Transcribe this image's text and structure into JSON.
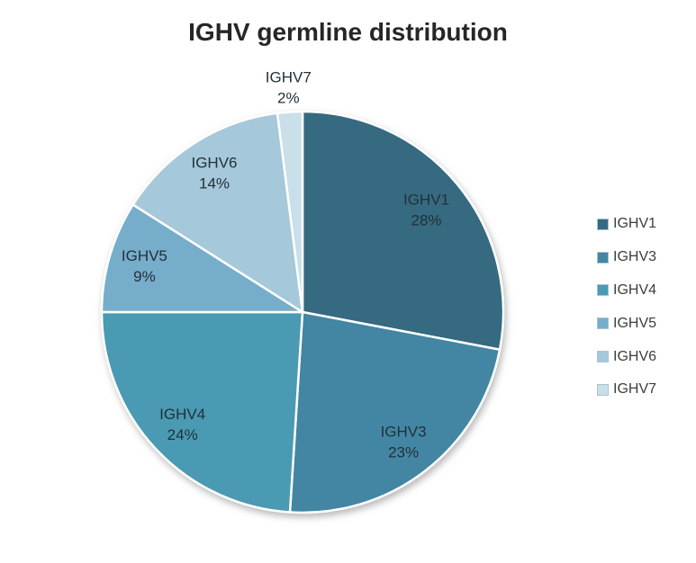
{
  "chart_data": {
    "type": "pie",
    "title": "IGHV germline distribution",
    "categories": [
      "IGHV1",
      "IGHV3",
      "IGHV4",
      "IGHV5",
      "IGHV6",
      "IGHV7"
    ],
    "values": [
      28,
      23,
      24,
      9,
      14,
      2
    ],
    "value_unit": "%",
    "data_labels": [
      {
        "name": "IGHV1",
        "percent": "28%"
      },
      {
        "name": "IGHV3",
        "percent": "23%"
      },
      {
        "name": "IGHV4",
        "percent": "24%"
      },
      {
        "name": "IGHV5",
        "percent": "9%"
      },
      {
        "name": "IGHV6",
        "percent": "14%"
      },
      {
        "name": "IGHV7",
        "percent": "2%"
      }
    ],
    "legend_entries": [
      "IGHV1",
      "IGHV3",
      "IGHV4",
      "IGHV5",
      "IGHV6",
      "IGHV7"
    ],
    "colors": [
      "#346b80",
      "#4286a3",
      "#4a9ab2",
      "#76adcb",
      "#a5c8da",
      "#c9dfe9"
    ],
    "title_color": "#262626",
    "label_color": "#233038",
    "legend_text_color": "#3d3d3d",
    "layout": {
      "legend_position": "right",
      "start_angle": "top-clockwise",
      "center": [
        336,
        347
      ],
      "radius": 223,
      "label_radius_fraction": [
        0.8,
        0.82,
        0.82,
        0.82,
        0.82,
        1.12
      ]
    }
  }
}
